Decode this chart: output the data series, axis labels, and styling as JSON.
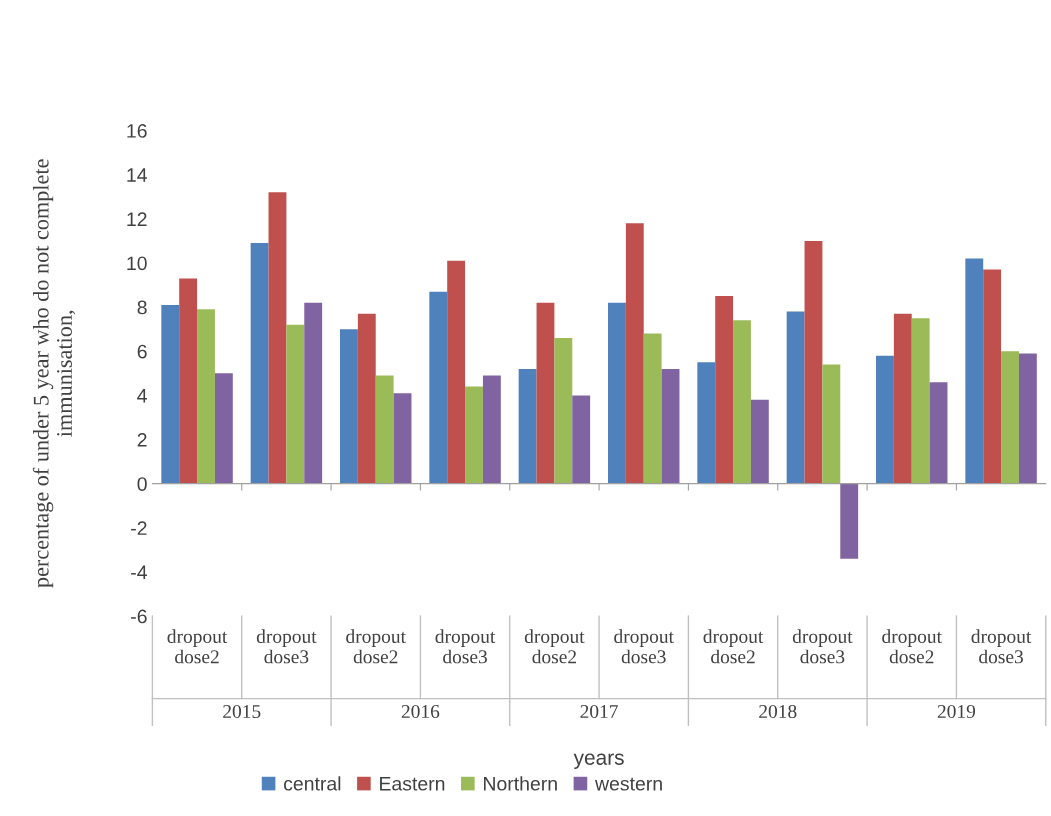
{
  "chart_data": {
    "type": "bar",
    "ylabel": "percentage of under 5 year who do not complete\nimmunisation,",
    "xlabel": "years",
    "categories": [
      "dropout\ndose2",
      "dropout\ndose3",
      "dropout\ndose2",
      "dropout\ndose3",
      "dropout\ndose2",
      "dropout\ndose3",
      "dropout\ndose2",
      "dropout\ndose3",
      "dropout\ndose2",
      "dropout\ndose3"
    ],
    "annotations": [
      "2015",
      "2016",
      "2017",
      "2018",
      "2019"
    ],
    "series": [
      {
        "name": "central",
        "color": "#4f81bd",
        "values": [
          8.1,
          10.9,
          7.0,
          8.7,
          5.2,
          8.2,
          5.5,
          7.8,
          5.8,
          10.2
        ]
      },
      {
        "name": "Eastern",
        "color": "#c0504d",
        "values": [
          9.3,
          13.2,
          7.7,
          10.1,
          8.2,
          11.8,
          8.5,
          11.0,
          7.7,
          9.7
        ]
      },
      {
        "name": "Northern",
        "color": "#9bbb59",
        "values": [
          7.9,
          7.2,
          4.9,
          4.4,
          6.6,
          6.8,
          7.4,
          5.4,
          7.5,
          6.0
        ]
      },
      {
        "name": "western",
        "color": "#8064a2",
        "values": [
          5.0,
          8.2,
          4.1,
          4.9,
          4.0,
          5.2,
          3.8,
          -3.4,
          4.6,
          5.9
        ]
      }
    ],
    "ylim": [
      -6,
      16
    ],
    "yticks": [
      -6,
      -4,
      -2,
      0,
      2,
      4,
      6,
      8,
      10,
      12,
      14,
      16
    ],
    "legend": "bottom"
  }
}
